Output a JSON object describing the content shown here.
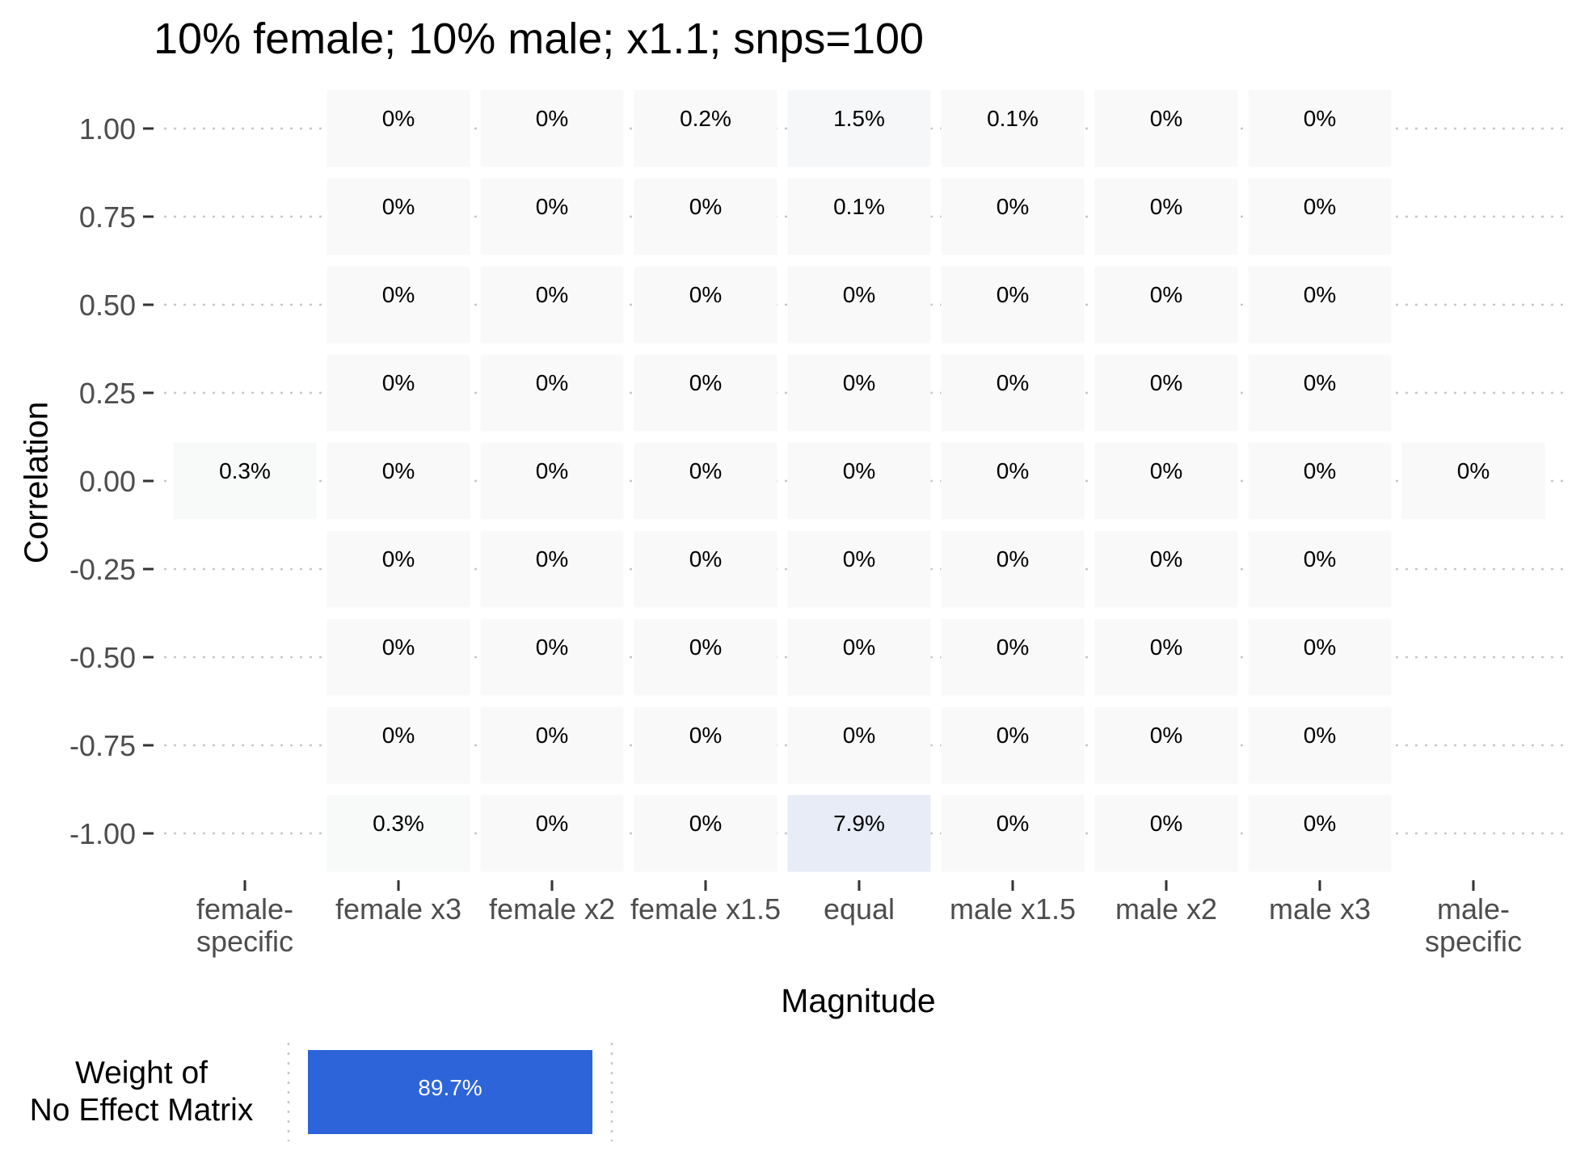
{
  "chart_data": [
    {
      "type": "heatmap",
      "title": "10% female; 10% male; x1.1; snps=100",
      "xlabel": "Magnitude",
      "ylabel": "Correlation",
      "x_categories": [
        "female-\nspecific",
        "female x3",
        "female x2",
        "female x1.5",
        "equal",
        "male x1.5",
        "male x2",
        "male x3",
        "male-\nspecific"
      ],
      "y_categories": [
        "1.00",
        "0.75",
        "0.50",
        "0.25",
        "0.00",
        "-0.25",
        "-0.50",
        "-0.75",
        "-1.00"
      ],
      "y_values": [
        1.0,
        0.75,
        0.5,
        0.25,
        0.0,
        -0.25,
        -0.5,
        -0.75,
        -1.0
      ],
      "value_unit": "%",
      "cells": [
        {
          "x": "female-\nspecific",
          "y": 0.0,
          "value": 0.3,
          "label": "0.3%"
        },
        {
          "x": "male-\nspecific",
          "y": 0.0,
          "value": 0,
          "label": "0%"
        },
        {
          "x": "female x3",
          "y": 1.0,
          "value": 0,
          "label": "0%"
        },
        {
          "x": "female x2",
          "y": 1.0,
          "value": 0,
          "label": "0%"
        },
        {
          "x": "female x1.5",
          "y": 1.0,
          "value": 0.2,
          "label": "0.2%"
        },
        {
          "x": "equal",
          "y": 1.0,
          "value": 1.5,
          "label": "1.5%"
        },
        {
          "x": "male x1.5",
          "y": 1.0,
          "value": 0.1,
          "label": "0.1%"
        },
        {
          "x": "male x2",
          "y": 1.0,
          "value": 0,
          "label": "0%"
        },
        {
          "x": "male x3",
          "y": 1.0,
          "value": 0,
          "label": "0%"
        },
        {
          "x": "female x3",
          "y": 0.75,
          "value": 0,
          "label": "0%"
        },
        {
          "x": "female x2",
          "y": 0.75,
          "value": 0,
          "label": "0%"
        },
        {
          "x": "female x1.5",
          "y": 0.75,
          "value": 0,
          "label": "0%"
        },
        {
          "x": "equal",
          "y": 0.75,
          "value": 0.1,
          "label": "0.1%"
        },
        {
          "x": "male x1.5",
          "y": 0.75,
          "value": 0,
          "label": "0%"
        },
        {
          "x": "male x2",
          "y": 0.75,
          "value": 0,
          "label": "0%"
        },
        {
          "x": "male x3",
          "y": 0.75,
          "value": 0,
          "label": "0%"
        },
        {
          "x": "female x3",
          "y": 0.5,
          "value": 0,
          "label": "0%"
        },
        {
          "x": "female x2",
          "y": 0.5,
          "value": 0,
          "label": "0%"
        },
        {
          "x": "female x1.5",
          "y": 0.5,
          "value": 0,
          "label": "0%"
        },
        {
          "x": "equal",
          "y": 0.5,
          "value": 0,
          "label": "0%"
        },
        {
          "x": "male x1.5",
          "y": 0.5,
          "value": 0,
          "label": "0%"
        },
        {
          "x": "male x2",
          "y": 0.5,
          "value": 0,
          "label": "0%"
        },
        {
          "x": "male x3",
          "y": 0.5,
          "value": 0,
          "label": "0%"
        },
        {
          "x": "female x3",
          "y": 0.25,
          "value": 0,
          "label": "0%"
        },
        {
          "x": "female x2",
          "y": 0.25,
          "value": 0,
          "label": "0%"
        },
        {
          "x": "female x1.5",
          "y": 0.25,
          "value": 0,
          "label": "0%"
        },
        {
          "x": "equal",
          "y": 0.25,
          "value": 0,
          "label": "0%"
        },
        {
          "x": "male x1.5",
          "y": 0.25,
          "value": 0,
          "label": "0%"
        },
        {
          "x": "male x2",
          "y": 0.25,
          "value": 0,
          "label": "0%"
        },
        {
          "x": "male x3",
          "y": 0.25,
          "value": 0,
          "label": "0%"
        },
        {
          "x": "female x3",
          "y": 0.0,
          "value": 0,
          "label": "0%"
        },
        {
          "x": "female x2",
          "y": 0.0,
          "value": 0,
          "label": "0%"
        },
        {
          "x": "female x1.5",
          "y": 0.0,
          "value": 0,
          "label": "0%"
        },
        {
          "x": "equal",
          "y": 0.0,
          "value": 0,
          "label": "0%"
        },
        {
          "x": "male x1.5",
          "y": 0.0,
          "value": 0,
          "label": "0%"
        },
        {
          "x": "male x2",
          "y": 0.0,
          "value": 0,
          "label": "0%"
        },
        {
          "x": "male x3",
          "y": 0.0,
          "value": 0,
          "label": "0%"
        },
        {
          "x": "female x3",
          "y": -0.25,
          "value": 0,
          "label": "0%"
        },
        {
          "x": "female x2",
          "y": -0.25,
          "value": 0,
          "label": "0%"
        },
        {
          "x": "female x1.5",
          "y": -0.25,
          "value": 0,
          "label": "0%"
        },
        {
          "x": "equal",
          "y": -0.25,
          "value": 0,
          "label": "0%"
        },
        {
          "x": "male x1.5",
          "y": -0.25,
          "value": 0,
          "label": "0%"
        },
        {
          "x": "male x2",
          "y": -0.25,
          "value": 0,
          "label": "0%"
        },
        {
          "x": "male x3",
          "y": -0.25,
          "value": 0,
          "label": "0%"
        },
        {
          "x": "female x3",
          "y": -0.5,
          "value": 0,
          "label": "0%"
        },
        {
          "x": "female x2",
          "y": -0.5,
          "value": 0,
          "label": "0%"
        },
        {
          "x": "female x1.5",
          "y": -0.5,
          "value": 0,
          "label": "0%"
        },
        {
          "x": "equal",
          "y": -0.5,
          "value": 0,
          "label": "0%"
        },
        {
          "x": "male x1.5",
          "y": -0.5,
          "value": 0,
          "label": "0%"
        },
        {
          "x": "male x2",
          "y": -0.5,
          "value": 0,
          "label": "0%"
        },
        {
          "x": "male x3",
          "y": -0.5,
          "value": 0,
          "label": "0%"
        },
        {
          "x": "female x3",
          "y": -0.75,
          "value": 0,
          "label": "0%"
        },
        {
          "x": "female x2",
          "y": -0.75,
          "value": 0,
          "label": "0%"
        },
        {
          "x": "female x1.5",
          "y": -0.75,
          "value": 0,
          "label": "0%"
        },
        {
          "x": "equal",
          "y": -0.75,
          "value": 0,
          "label": "0%"
        },
        {
          "x": "male x1.5",
          "y": -0.75,
          "value": 0,
          "label": "0%"
        },
        {
          "x": "male x2",
          "y": -0.75,
          "value": 0,
          "label": "0%"
        },
        {
          "x": "male x3",
          "y": -0.75,
          "value": 0,
          "label": "0%"
        },
        {
          "x": "female x3",
          "y": -1.0,
          "value": 0.3,
          "label": "0.3%"
        },
        {
          "x": "female x2",
          "y": -1.0,
          "value": 0,
          "label": "0%"
        },
        {
          "x": "female x1.5",
          "y": -1.0,
          "value": 0,
          "label": "0%"
        },
        {
          "x": "equal",
          "y": -1.0,
          "value": 7.9,
          "label": "7.9%"
        },
        {
          "x": "male x1.5",
          "y": -1.0,
          "value": 0,
          "label": "0%"
        },
        {
          "x": "male x2",
          "y": -1.0,
          "value": 0,
          "label": "0%"
        },
        {
          "x": "male x3",
          "y": -1.0,
          "value": 0,
          "label": "0%"
        }
      ],
      "color_scale": {
        "low": "#f9f9f9",
        "high": "#2d64d9",
        "max_value": 89.7
      },
      "grid": true
    },
    {
      "type": "bar",
      "ylabel": "Weight of\nNo Effect Matrix",
      "categories": [
        ""
      ],
      "values": [
        89.7
      ],
      "labels": [
        "89.7%"
      ],
      "color": "#2d64d9"
    }
  ],
  "weight": {
    "label_line1": "Weight of",
    "label_line2": "No Effect Matrix"
  }
}
